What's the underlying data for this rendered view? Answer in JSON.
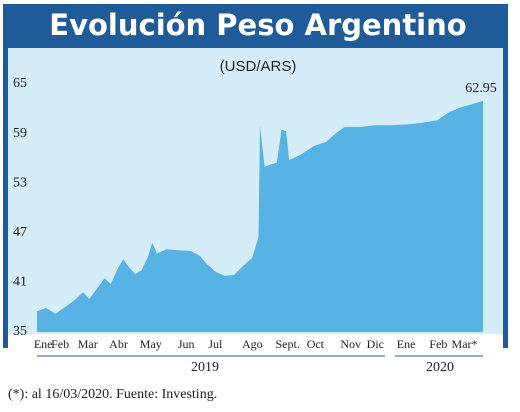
{
  "chart_data": {
    "type": "area",
    "title": "Evolución Peso Argentino",
    "subtitle": "(USD/ARS)",
    "footnote": "(*): al 16/03/2020. Fuente: Investing.",
    "year_labels": [
      "2019",
      "2020"
    ],
    "color": "#56b3e3",
    "x": [
      0,
      0.3,
      0.6,
      0.9,
      1.2,
      1.5,
      1.7,
      2.0,
      2.2,
      2.4,
      2.6,
      2.8,
      3.0,
      3.2,
      3.4,
      3.6,
      3.75,
      3.9,
      4.2,
      4.6,
      5.0,
      5.3,
      5.5,
      5.8,
      6.1,
      6.4,
      6.7,
      7.0,
      7.2,
      7.25,
      7.4,
      7.8,
      7.95,
      8.1,
      8.2,
      8.6,
      9.0,
      9.4,
      9.7,
      10.0,
      10.5,
      11.0,
      11.5,
      12.0,
      12.5,
      13.0,
      13.4,
      13.8,
      14.2,
      14.5
    ],
    "values": [
      37.5,
      37.9,
      37.2,
      38.0,
      38.8,
      39.8,
      39.0,
      40.5,
      41.5,
      40.8,
      42.5,
      43.8,
      42.8,
      42.0,
      42.5,
      44.0,
      45.8,
      44.5,
      45.0,
      44.9,
      44.8,
      44.2,
      43.3,
      42.3,
      41.8,
      41.9,
      43.0,
      44.0,
      46.5,
      60.0,
      55.0,
      55.5,
      59.5,
      59.3,
      55.8,
      56.5,
      57.5,
      58.0,
      59.0,
      59.8,
      59.8,
      60.0,
      60.0,
      60.1,
      60.3,
      60.6,
      61.6,
      62.2,
      62.6,
      62.95
    ],
    "end_label": "62.95",
    "xlim": [
      0,
      14.5
    ],
    "xticks": [
      {
        "value": 0.2,
        "label": "Ene"
      },
      {
        "value": 0.75,
        "label": "Feb"
      },
      {
        "value": 1.65,
        "label": "Mar"
      },
      {
        "value": 2.65,
        "label": "Abr"
      },
      {
        "value": 3.7,
        "label": "May"
      },
      {
        "value": 4.85,
        "label": "Jun"
      },
      {
        "value": 5.8,
        "label": "Jul"
      },
      {
        "value": 7.0,
        "label": "Ago"
      },
      {
        "value": 8.15,
        "label": "Sept."
      },
      {
        "value": 9.05,
        "label": "Oct"
      },
      {
        "value": 10.2,
        "label": "Nov"
      },
      {
        "value": 11.0,
        "label": "Dic"
      },
      {
        "value": 12.0,
        "label": "Ene"
      },
      {
        "value": 13.05,
        "label": "Feb"
      },
      {
        "value": 13.9,
        "label": "Mar*"
      }
    ],
    "ylim": [
      35,
      65
    ],
    "yticks": [
      35,
      41,
      47,
      53,
      59,
      65
    ],
    "grid": false
  }
}
